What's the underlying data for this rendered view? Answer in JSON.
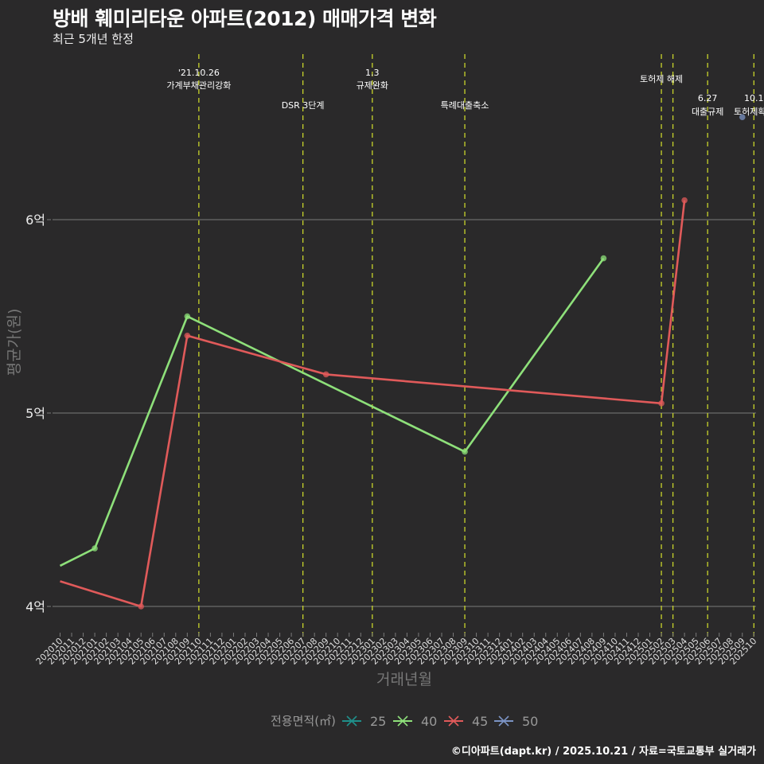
{
  "header": {
    "title": "방배 훼미리타운 아파트(2012) 매매가격 변화",
    "subtitle": "최근 5개년 한정"
  },
  "caption": "©디아파트(dapt.kr) / 2025.10.21 / 자료=국토교통부 실거래가",
  "colors": {
    "background": "#2a292a",
    "grid": "#7a7a7a",
    "vline": "#c8d42a",
    "s25": "#1f8f8a",
    "s40": "#8ee07a",
    "s45": "#e05a5a",
    "s50": "#7b93c4"
  },
  "chart_data": {
    "type": "line",
    "title": "방배 훼미리타운 아파트(2012) 매매가격 변화",
    "subtitle": "최근 5개년 한정",
    "xlabel": "거래년월",
    "ylabel": "평균가(원)",
    "yticks": [
      "4억",
      "5억",
      "6억"
    ],
    "ytick_values": [
      400000000,
      500000000,
      600000000
    ],
    "ylim": [
      387000000,
      687000000
    ],
    "grid": true,
    "legend": {
      "title": "전용면적(㎡)",
      "position": "bottom",
      "entries": [
        "25",
        "40",
        "45",
        "50"
      ]
    },
    "x_categories": [
      "202010",
      "202011",
      "202012",
      "202101",
      "202102",
      "202103",
      "202104",
      "202105",
      "202106",
      "202107",
      "202108",
      "202109",
      "202110",
      "202111",
      "202112",
      "202201",
      "202202",
      "202203",
      "202204",
      "202205",
      "202206",
      "202207",
      "202208",
      "202209",
      "202210",
      "202211",
      "202212",
      "202301",
      "202302",
      "202303",
      "202304",
      "202305",
      "202306",
      "202307",
      "202308",
      "202309",
      "202310",
      "202311",
      "202312",
      "202401",
      "202402",
      "202403",
      "202404",
      "202405",
      "202406",
      "202407",
      "202408",
      "202409",
      "202410",
      "202411",
      "202412",
      "202501",
      "202502",
      "202503",
      "202504",
      "202505",
      "202506",
      "202507",
      "202508",
      "202509",
      "202510"
    ],
    "series": [
      {
        "name": "40",
        "points": [
          [
            "202010",
            421000000
          ],
          [
            "202101",
            430000000
          ],
          [
            "202109",
            550000000
          ],
          [
            "202309",
            480000000
          ],
          [
            "202409",
            580000000
          ]
        ]
      },
      {
        "name": "45",
        "points": [
          [
            "202010",
            413000000
          ],
          [
            "202105",
            400000000
          ],
          [
            "202109",
            540000000
          ],
          [
            "202209",
            520000000
          ],
          [
            "202502",
            505000000
          ],
          [
            "202504",
            610000000
          ]
        ]
      },
      {
        "name": "50",
        "points": [
          [
            "202509",
            653000000
          ]
        ]
      },
      {
        "name": "25",
        "points": []
      }
    ],
    "annotations": [
      {
        "x": "202110",
        "line1": "'21.10.26",
        "line2": "가계부채관리강화",
        "row": "top"
      },
      {
        "x": "202207",
        "line1": "DSR 3단계",
        "line2": "",
        "row": "low"
      },
      {
        "x": "202301",
        "line1": "1.3",
        "line2": "규제완화",
        "row": "top"
      },
      {
        "x": "202309",
        "line1": "특례대출축소",
        "line2": "",
        "row": "low"
      },
      {
        "x": "202502",
        "line1": "토허제 해제",
        "line2": "",
        "row": "mid"
      },
      {
        "x": "202503",
        "line1": "",
        "line2": "",
        "row": "none"
      },
      {
        "x": "202506",
        "line1": "6.27",
        "line2": "대출규제",
        "row": "low2"
      },
      {
        "x": "202510",
        "line1": "10.1",
        "line2": "토허제확대",
        "row": "low2"
      }
    ]
  }
}
